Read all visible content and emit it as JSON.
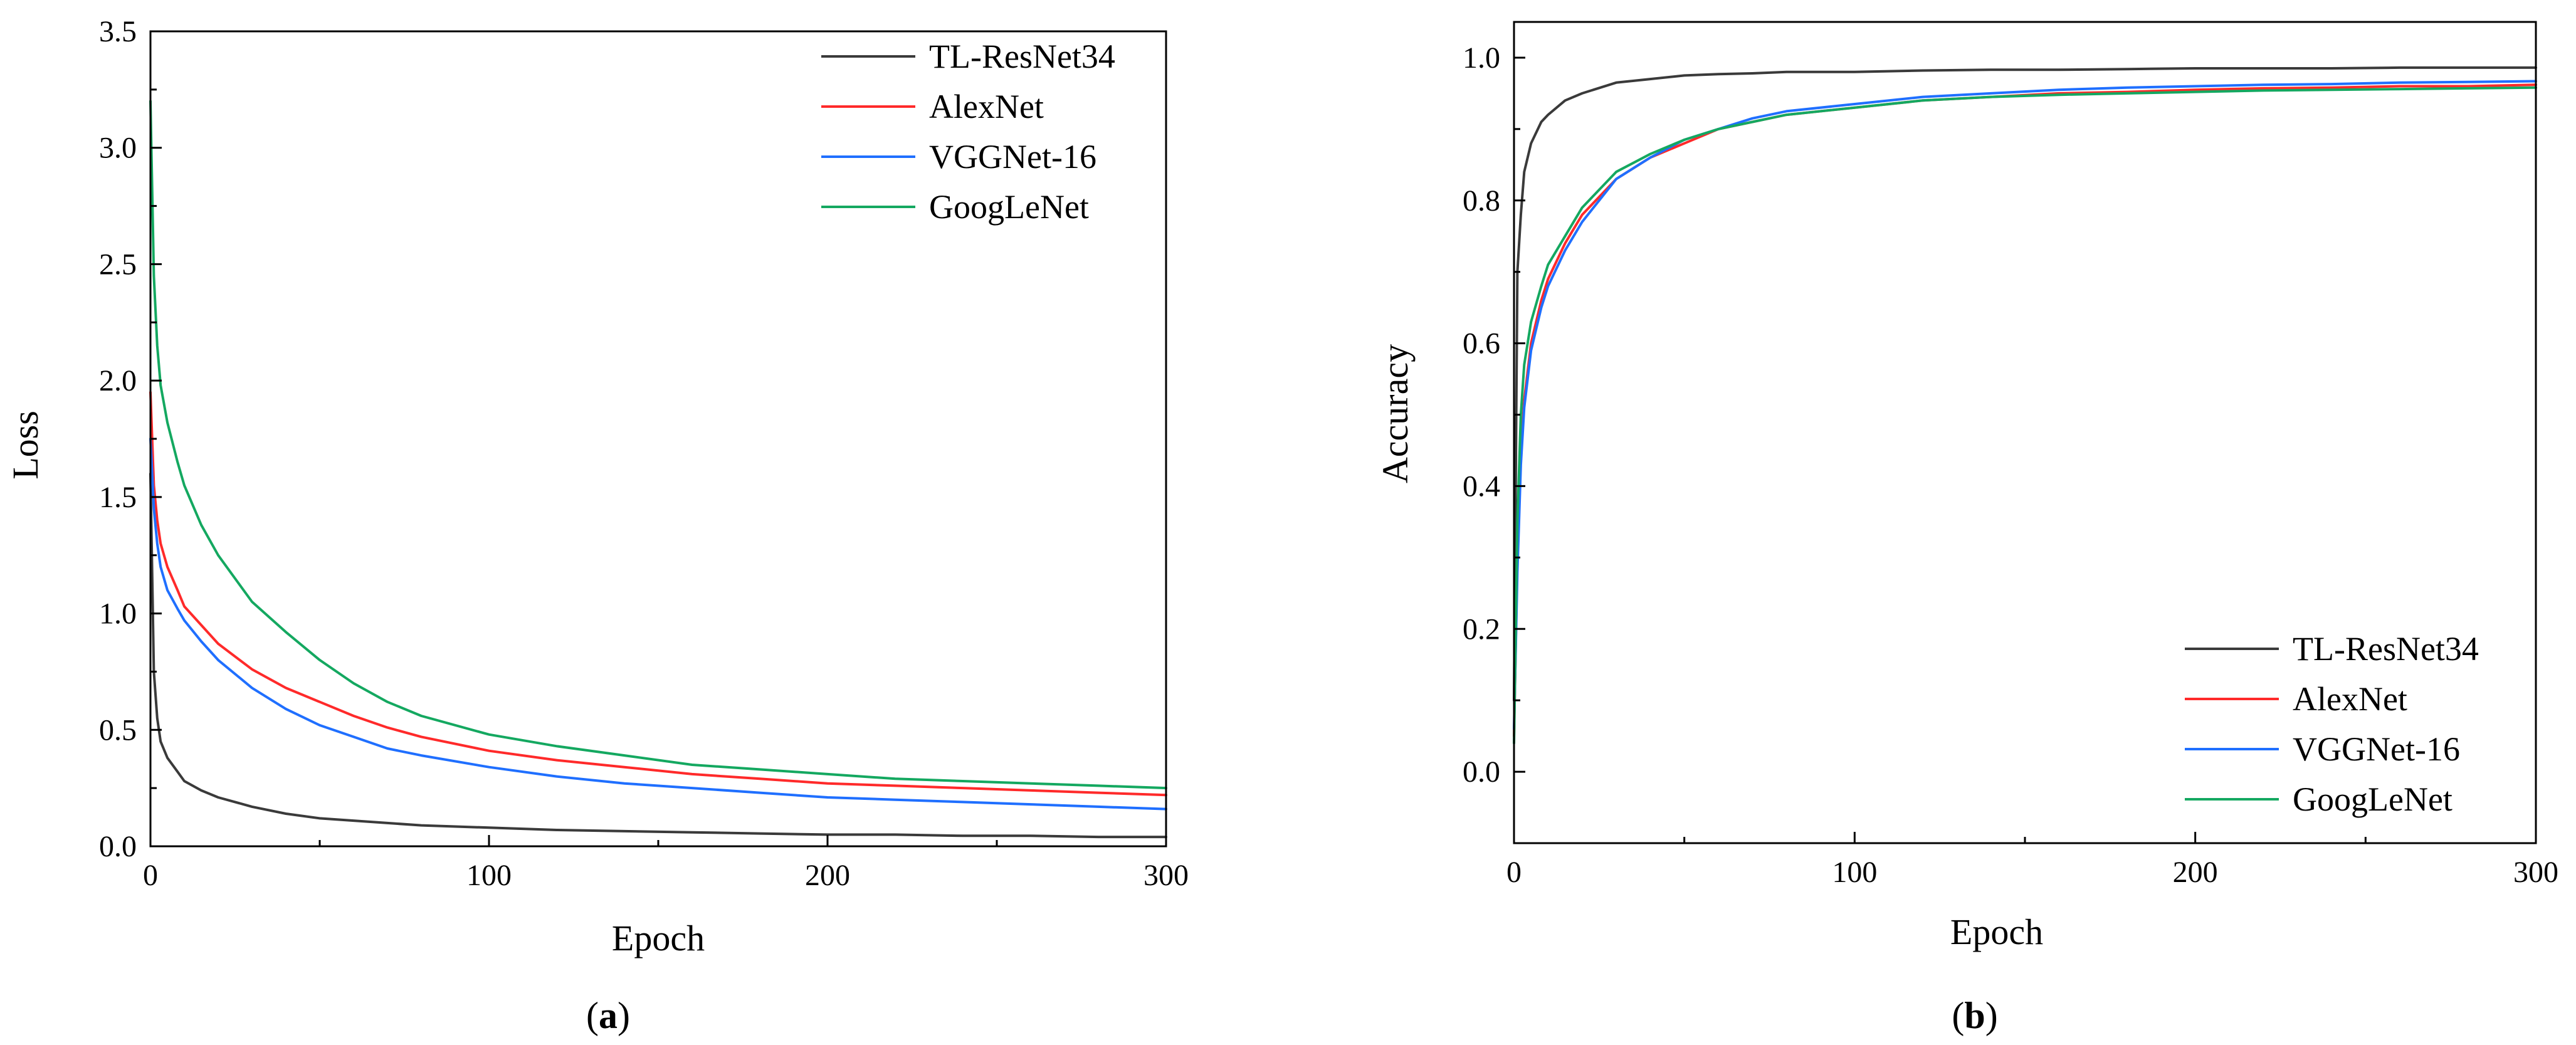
{
  "colors": {
    "TL-ResNet34": "#3a3a3a",
    "AlexNet": "#ff2a2a",
    "VGGNet-16": "#1f6fff",
    "GoogLeNet": "#14a860"
  },
  "chart_data": [
    {
      "id": "a",
      "type": "line",
      "panel_label": "a",
      "title": "",
      "xlabel": "Epoch",
      "ylabel": "Loss",
      "xlim": [
        0,
        300
      ],
      "ylim": [
        0,
        3.5
      ],
      "x_ticks": [
        0,
        100,
        200,
        300
      ],
      "x_tick_labels": [
        "0",
        "100",
        "200",
        "300"
      ],
      "y_ticks": [
        0,
        0.5,
        1,
        1.5,
        2,
        2.5,
        3,
        3.5
      ],
      "y_tick_labels": [
        "0.0",
        "0.5",
        "1.0",
        "1.5",
        "2.0",
        "2.5",
        "3.0",
        "3.5"
      ],
      "grid": false,
      "legend_position": "top-right",
      "series": [
        {
          "name": "TL-ResNet34",
          "color_key": "TL-ResNet34",
          "x": [
            0,
            1,
            2,
            3,
            5,
            8,
            10,
            15,
            20,
            30,
            40,
            50,
            60,
            70,
            80,
            100,
            120,
            140,
            160,
            180,
            200,
            220,
            240,
            260,
            280,
            300
          ],
          "y": [
            1.6,
            0.75,
            0.55,
            0.45,
            0.38,
            0.32,
            0.28,
            0.24,
            0.21,
            0.17,
            0.14,
            0.12,
            0.11,
            0.1,
            0.09,
            0.08,
            0.07,
            0.065,
            0.06,
            0.055,
            0.05,
            0.05,
            0.045,
            0.045,
            0.04,
            0.04
          ]
        },
        {
          "name": "AlexNet",
          "color_key": "AlexNet",
          "x": [
            0,
            1,
            2,
            3,
            5,
            8,
            10,
            15,
            20,
            30,
            40,
            50,
            60,
            70,
            80,
            100,
            120,
            140,
            160,
            180,
            200,
            220,
            240,
            260,
            280,
            300
          ],
          "y": [
            1.95,
            1.55,
            1.4,
            1.3,
            1.2,
            1.1,
            1.03,
            0.95,
            0.87,
            0.76,
            0.68,
            0.62,
            0.56,
            0.51,
            0.47,
            0.41,
            0.37,
            0.34,
            0.31,
            0.29,
            0.27,
            0.26,
            0.25,
            0.24,
            0.23,
            0.22
          ]
        },
        {
          "name": "VGGNet-16",
          "color_key": "VGGNet-16",
          "x": [
            0,
            1,
            2,
            3,
            5,
            8,
            10,
            15,
            20,
            30,
            40,
            50,
            60,
            70,
            80,
            100,
            120,
            140,
            160,
            180,
            200,
            220,
            240,
            260,
            280,
            300
          ],
          "y": [
            1.75,
            1.45,
            1.3,
            1.2,
            1.1,
            1.02,
            0.97,
            0.88,
            0.8,
            0.68,
            0.59,
            0.52,
            0.47,
            0.42,
            0.39,
            0.34,
            0.3,
            0.27,
            0.25,
            0.23,
            0.21,
            0.2,
            0.19,
            0.18,
            0.17,
            0.16
          ]
        },
        {
          "name": "GoogLeNet",
          "color_key": "GoogLeNet",
          "x": [
            0,
            1,
            2,
            3,
            5,
            8,
            10,
            15,
            20,
            30,
            40,
            50,
            60,
            70,
            80,
            100,
            120,
            140,
            160,
            180,
            200,
            220,
            240,
            260,
            280,
            300
          ],
          "y": [
            3.2,
            2.45,
            2.15,
            1.98,
            1.82,
            1.65,
            1.55,
            1.38,
            1.25,
            1.05,
            0.92,
            0.8,
            0.7,
            0.62,
            0.56,
            0.48,
            0.43,
            0.39,
            0.35,
            0.33,
            0.31,
            0.29,
            0.28,
            0.27,
            0.26,
            0.25
          ]
        }
      ]
    },
    {
      "id": "b",
      "type": "line",
      "panel_label": "b",
      "title": "",
      "xlabel": "Epoch",
      "ylabel": "Accuracy",
      "xlim": [
        0,
        300
      ],
      "ylim": [
        -0.1,
        1.05
      ],
      "x_ticks": [
        0,
        100,
        200,
        300
      ],
      "x_tick_labels": [
        "0",
        "100",
        "200",
        "300"
      ],
      "y_ticks": [
        0,
        0.2,
        0.4,
        0.6,
        0.8,
        1
      ],
      "y_tick_labels": [
        "0.0",
        "0.2",
        "0.4",
        "0.6",
        "0.8",
        "1.0"
      ],
      "grid": false,
      "legend_position": "bottom-right",
      "series": [
        {
          "name": "TL-ResNet34",
          "color_key": "TL-ResNet34",
          "x": [
            0,
            1,
            2,
            3,
            5,
            8,
            10,
            15,
            20,
            30,
            40,
            50,
            60,
            70,
            80,
            100,
            120,
            140,
            160,
            180,
            200,
            220,
            240,
            260,
            280,
            300
          ],
          "y": [
            0.1,
            0.7,
            0.78,
            0.84,
            0.88,
            0.91,
            0.92,
            0.94,
            0.95,
            0.965,
            0.97,
            0.975,
            0.977,
            0.978,
            0.98,
            0.98,
            0.982,
            0.983,
            0.983,
            0.984,
            0.985,
            0.985,
            0.985,
            0.986,
            0.986,
            0.986
          ]
        },
        {
          "name": "AlexNet",
          "color_key": "AlexNet",
          "x": [
            0,
            1,
            2,
            3,
            5,
            8,
            10,
            15,
            20,
            30,
            40,
            50,
            60,
            70,
            80,
            100,
            120,
            140,
            160,
            180,
            200,
            220,
            240,
            260,
            280,
            300
          ],
          "y": [
            0.05,
            0.3,
            0.45,
            0.52,
            0.6,
            0.66,
            0.69,
            0.74,
            0.78,
            0.83,
            0.86,
            0.88,
            0.9,
            0.91,
            0.92,
            0.93,
            0.94,
            0.945,
            0.95,
            0.952,
            0.955,
            0.957,
            0.958,
            0.96,
            0.96,
            0.962
          ]
        },
        {
          "name": "VGGNet-16",
          "color_key": "VGGNet-16",
          "x": [
            0,
            1,
            2,
            3,
            5,
            8,
            10,
            15,
            20,
            30,
            40,
            50,
            60,
            70,
            80,
            100,
            120,
            140,
            160,
            180,
            200,
            220,
            240,
            260,
            280,
            300
          ],
          "y": [
            0.06,
            0.28,
            0.43,
            0.51,
            0.59,
            0.65,
            0.68,
            0.73,
            0.77,
            0.83,
            0.86,
            0.885,
            0.9,
            0.915,
            0.925,
            0.935,
            0.945,
            0.95,
            0.955,
            0.958,
            0.96,
            0.962,
            0.963,
            0.965,
            0.966,
            0.967
          ]
        },
        {
          "name": "GoogLeNet",
          "color_key": "GoogLeNet",
          "x": [
            0,
            1,
            2,
            3,
            5,
            8,
            10,
            15,
            20,
            30,
            40,
            50,
            60,
            70,
            80,
            100,
            120,
            140,
            160,
            180,
            200,
            220,
            240,
            260,
            280,
            300
          ],
          "y": [
            0.04,
            0.35,
            0.5,
            0.57,
            0.63,
            0.68,
            0.71,
            0.75,
            0.79,
            0.84,
            0.865,
            0.885,
            0.9,
            0.91,
            0.92,
            0.93,
            0.94,
            0.945,
            0.948,
            0.95,
            0.952,
            0.954,
            0.955,
            0.956,
            0.957,
            0.958
          ]
        }
      ]
    }
  ]
}
